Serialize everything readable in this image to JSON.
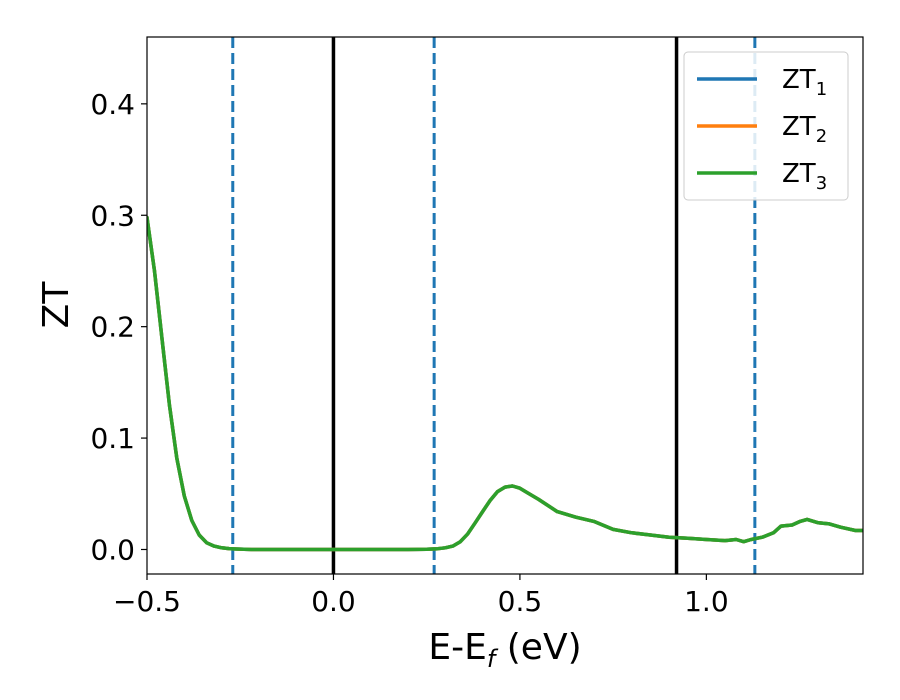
{
  "chart_data": {
    "type": "line",
    "title": "",
    "xlabel_parts": {
      "main": "E-E",
      "sub": "f",
      "unit": " (eV)"
    },
    "ylabel": "ZT",
    "xlim": [
      -0.5,
      1.42
    ],
    "ylim": [
      -0.022,
      0.46
    ],
    "xticks": [
      -0.5,
      0.0,
      0.5,
      1.0
    ],
    "xtick_labels": [
      "−0.5",
      "0.0",
      "0.5",
      "1.0"
    ],
    "yticks": [
      0.0,
      0.1,
      0.2,
      0.3,
      0.4
    ],
    "ytick_labels": [
      "0.0",
      "0.1",
      "0.2",
      "0.3",
      "0.4"
    ],
    "grid": false,
    "legend_position": "top-right",
    "series": [
      {
        "name": "ZT",
        "subscript": "1",
        "color": "#1f77b4",
        "x": [
          -0.5,
          -0.48,
          -0.46,
          -0.44,
          -0.42,
          -0.4,
          -0.38,
          -0.36,
          -0.34,
          -0.32,
          -0.3,
          -0.28,
          -0.26,
          -0.24,
          -0.22,
          -0.2,
          -0.1,
          0.0,
          0.1,
          0.2,
          0.25,
          0.28,
          0.3,
          0.32,
          0.34,
          0.36,
          0.38,
          0.4,
          0.42,
          0.44,
          0.46,
          0.48,
          0.5,
          0.52,
          0.55,
          0.6,
          0.65,
          0.7,
          0.75,
          0.8,
          0.85,
          0.9,
          0.95,
          1.0,
          1.05,
          1.08,
          1.1,
          1.12,
          1.15,
          1.18,
          1.2,
          1.23,
          1.25,
          1.27,
          1.3,
          1.33,
          1.36,
          1.4,
          1.42
        ],
        "y": [
          0.298,
          0.25,
          0.19,
          0.13,
          0.082,
          0.048,
          0.026,
          0.013,
          0.006,
          0.003,
          0.0015,
          0.0008,
          0.0004,
          0.0002,
          0.0,
          0.0,
          0.0,
          0.0,
          0.0,
          0.0,
          0.0003,
          0.0007,
          0.0015,
          0.003,
          0.007,
          0.014,
          0.024,
          0.034,
          0.044,
          0.052,
          0.056,
          0.057,
          0.055,
          0.051,
          0.045,
          0.034,
          0.029,
          0.025,
          0.018,
          0.015,
          0.013,
          0.011,
          0.01,
          0.009,
          0.008,
          0.009,
          0.007,
          0.009,
          0.011,
          0.015,
          0.021,
          0.022,
          0.025,
          0.027,
          0.024,
          0.023,
          0.02,
          0.017,
          0.017
        ]
      },
      {
        "name": "ZT",
        "subscript": "2",
        "color": "#ff7f0e",
        "x": [
          -0.5,
          -0.48,
          -0.46,
          -0.44,
          -0.42,
          -0.4,
          -0.38,
          -0.36,
          -0.34,
          -0.32,
          -0.3,
          -0.28,
          -0.26,
          -0.24,
          -0.22,
          -0.2,
          -0.1,
          0.0,
          0.1,
          0.2,
          0.25,
          0.28,
          0.3,
          0.32,
          0.34,
          0.36,
          0.38,
          0.4,
          0.42,
          0.44,
          0.46,
          0.48,
          0.5,
          0.52,
          0.55,
          0.6,
          0.65,
          0.7,
          0.75,
          0.8,
          0.85,
          0.9,
          0.95,
          1.0,
          1.05,
          1.08,
          1.1,
          1.12,
          1.15,
          1.18,
          1.2,
          1.23,
          1.25,
          1.27,
          1.3,
          1.33,
          1.36,
          1.4,
          1.42
        ],
        "y": [
          0.298,
          0.25,
          0.19,
          0.13,
          0.082,
          0.048,
          0.026,
          0.013,
          0.006,
          0.003,
          0.0015,
          0.0008,
          0.0004,
          0.0002,
          0.0,
          0.0,
          0.0,
          0.0,
          0.0,
          0.0,
          0.0003,
          0.0007,
          0.0015,
          0.003,
          0.007,
          0.014,
          0.024,
          0.034,
          0.044,
          0.052,
          0.056,
          0.057,
          0.055,
          0.051,
          0.045,
          0.034,
          0.029,
          0.025,
          0.018,
          0.015,
          0.013,
          0.011,
          0.01,
          0.009,
          0.008,
          0.009,
          0.007,
          0.009,
          0.011,
          0.015,
          0.021,
          0.022,
          0.025,
          0.027,
          0.024,
          0.023,
          0.02,
          0.017,
          0.017
        ]
      },
      {
        "name": "ZT",
        "subscript": "3",
        "color": "#2ca02c",
        "x": [
          -0.5,
          -0.48,
          -0.46,
          -0.44,
          -0.42,
          -0.4,
          -0.38,
          -0.36,
          -0.34,
          -0.32,
          -0.3,
          -0.28,
          -0.26,
          -0.24,
          -0.22,
          -0.2,
          -0.1,
          0.0,
          0.1,
          0.2,
          0.25,
          0.28,
          0.3,
          0.32,
          0.34,
          0.36,
          0.38,
          0.4,
          0.42,
          0.44,
          0.46,
          0.48,
          0.5,
          0.52,
          0.55,
          0.6,
          0.65,
          0.7,
          0.75,
          0.8,
          0.85,
          0.9,
          0.95,
          1.0,
          1.05,
          1.08,
          1.1,
          1.12,
          1.15,
          1.18,
          1.2,
          1.23,
          1.25,
          1.27,
          1.3,
          1.33,
          1.36,
          1.4,
          1.42
        ],
        "y": [
          0.298,
          0.25,
          0.19,
          0.13,
          0.082,
          0.048,
          0.026,
          0.013,
          0.006,
          0.003,
          0.0015,
          0.0008,
          0.0004,
          0.0002,
          0.0,
          0.0,
          0.0,
          0.0,
          0.0,
          0.0,
          0.0003,
          0.0007,
          0.0015,
          0.003,
          0.007,
          0.014,
          0.024,
          0.034,
          0.044,
          0.052,
          0.056,
          0.057,
          0.055,
          0.051,
          0.045,
          0.034,
          0.029,
          0.025,
          0.018,
          0.015,
          0.013,
          0.011,
          0.01,
          0.009,
          0.008,
          0.009,
          0.007,
          0.009,
          0.011,
          0.015,
          0.021,
          0.022,
          0.025,
          0.027,
          0.024,
          0.023,
          0.02,
          0.017,
          0.017
        ]
      }
    ],
    "vertical_lines": [
      {
        "x": -0.27,
        "style": "dashed",
        "color": "#1f77b4"
      },
      {
        "x": 0.0,
        "style": "solid",
        "color": "#000000"
      },
      {
        "x": 0.27,
        "style": "dashed",
        "color": "#1f77b4"
      },
      {
        "x": 0.92,
        "style": "solid",
        "color": "#000000"
      },
      {
        "x": 1.13,
        "style": "dashed",
        "color": "#1f77b4"
      }
    ]
  }
}
